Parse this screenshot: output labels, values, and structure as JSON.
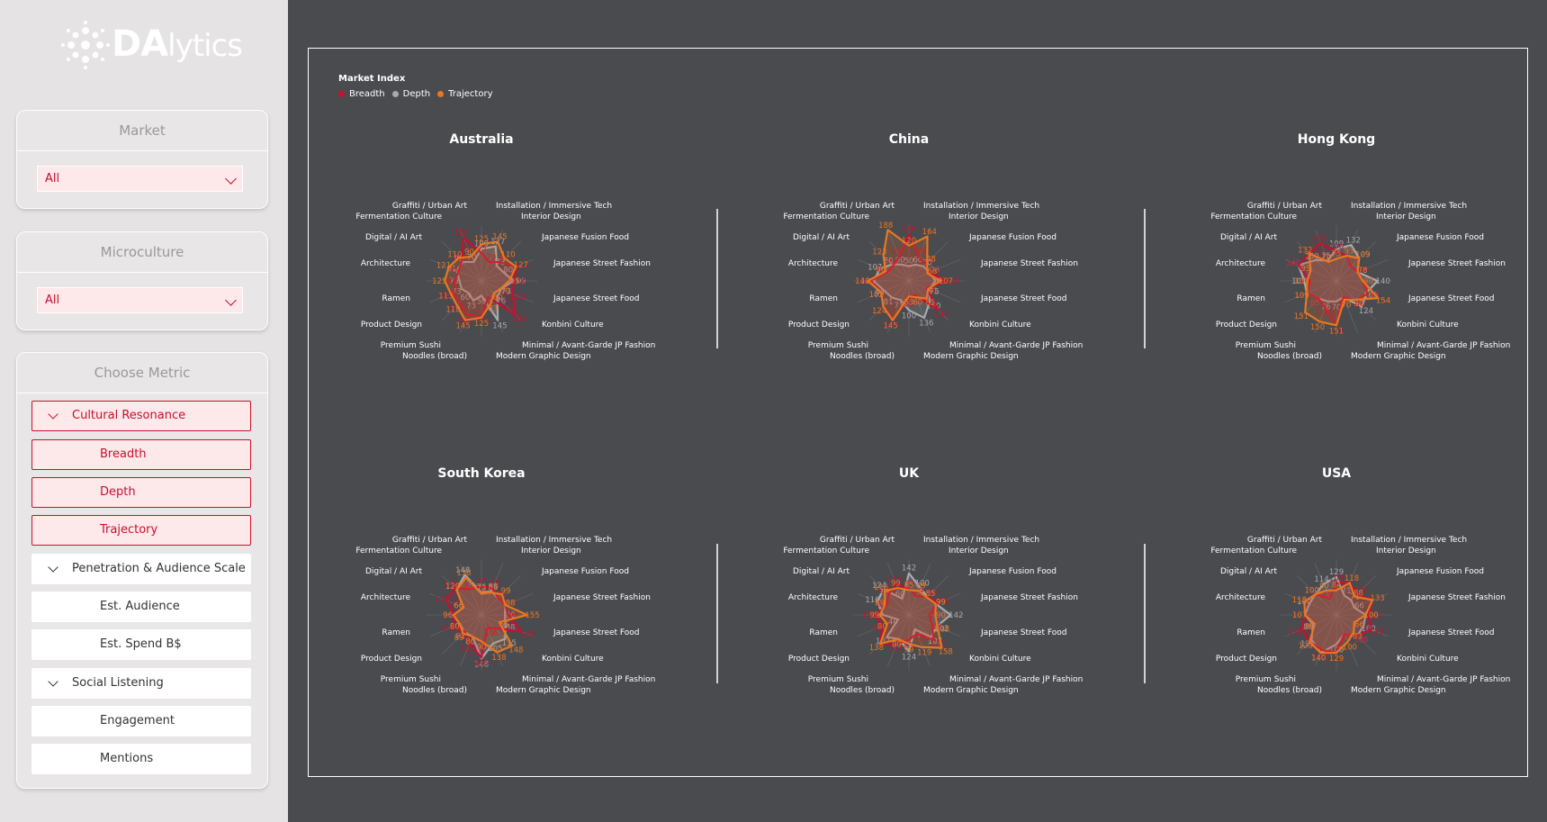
{
  "brand": {
    "name_bold": "DA",
    "name_light": "lytics"
  },
  "filters": {
    "market": {
      "title": "Market",
      "value": "All"
    },
    "microculture": {
      "title": "Microculture",
      "value": "All"
    }
  },
  "metric_panel": {
    "title": "Choose Metric",
    "items": [
      {
        "label": "Cultural Resonance",
        "kind": "group",
        "selected": true
      },
      {
        "label": "Breadth",
        "kind": "sub",
        "selected": true
      },
      {
        "label": "Depth",
        "kind": "sub",
        "selected": true
      },
      {
        "label": "Trajectory",
        "kind": "sub",
        "selected": true
      },
      {
        "label": "Penetration & Audience Scale",
        "kind": "group",
        "selected": false
      },
      {
        "label": "Est. Audience",
        "kind": "sub",
        "selected": false
      },
      {
        "label": "Est. Spend B$",
        "kind": "sub",
        "selected": false
      },
      {
        "label": "Social Listening",
        "kind": "group",
        "selected": false
      },
      {
        "label": "Engagement",
        "kind": "sub",
        "selected": false
      },
      {
        "label": "Mentions",
        "kind": "sub",
        "selected": false
      }
    ]
  },
  "colors": {
    "breadth": "#c8102e",
    "depth": "#a7a9ac",
    "trajectory": "#e87722",
    "panel_bg": "#4a4b4f"
  },
  "chart_data": {
    "type": "radar",
    "legend_title": "Market Index",
    "series_names": [
      "Breadth",
      "Depth",
      "Trajectory"
    ],
    "axes": [
      "Installation / Immersive Tech",
      "Interior Design",
      "Japanese Fusion Food",
      "Japanese Street Fashion",
      "Japanese Street Food",
      "Konbini Culture",
      "Minimal / Avant-Garde JP Fashion",
      "Modern Graphic Design",
      "Noodles (broad)",
      "Premium Sushi",
      "Product Design",
      "Ramen",
      "Architecture",
      "Digital / AI Art",
      "Fermentation Culture",
      "Graffiti / Urban Art"
    ],
    "rmax": 190,
    "charts": [
      {
        "title": "Australia",
        "breadth": [
          95,
          70,
          90,
          131,
          110,
          116,
          164,
          60,
          120,
          125,
          106,
          105,
          90,
          85,
          95,
          160
        ],
        "depth": [
          109,
          127,
          73,
          80,
          109,
          73,
          76,
          145,
          50,
          73,
          60,
          73,
          75,
          91,
          91,
          70
        ],
        "trajectory": [
          125,
          145,
          110,
          127,
          95,
          70,
          60,
          83,
          125,
          145,
          118,
          113,
          125,
          121,
          110,
          90
        ]
      },
      {
        "title": "China",
        "breadth": [
          160,
          90,
          80,
          75,
          130,
          65,
          141,
          50,
          60,
          141,
          124,
          102,
          132,
          80,
          75,
          90
        ],
        "depth": [
          50,
          60,
          70,
          76,
          90,
          75,
          100,
          136,
          100,
          71,
          81,
          90,
          120,
          107,
          80,
          60
        ],
        "trajectory": [
          120,
          164,
          88,
          68,
          107,
          71,
          85,
          60,
          53,
          145,
          124,
          102,
          140,
          86,
          123,
          188
        ]
      },
      {
        "title": "Hong Kong",
        "breadth": [
          100,
          93,
          70,
          80,
          90,
          115,
          94,
          60,
          150,
          100,
          85,
          109,
          90,
          140,
          132,
          140
        ],
        "depth": [
          109,
          132,
          109,
          78,
          140,
          109,
          124,
          60,
          70,
          76,
          85,
          109,
          109,
          140,
          100,
          75
        ],
        "trajectory": [
          75,
          93,
          109,
          78,
          90,
          154,
          90,
          70,
          151,
          150,
          151,
          109,
          100,
          95,
          132,
          70
        ]
      },
      {
        "title": "South Korea",
        "breadth": [
          97,
          99,
          80,
          88,
          90,
          148,
          63,
          50,
          145,
          105,
          80,
          103,
          96,
          130,
          130,
          95
        ],
        "depth": [
          76,
          88,
          80,
          88,
          80,
          88,
          115,
          105,
          148,
          80,
          82,
          80,
          96,
          66,
          120,
          148
        ],
        "trajectory": [
          72,
          83,
          99,
          88,
          155,
          66,
          148,
          138,
          90,
          80,
          89,
          80,
          96,
          66,
          120,
          138
        ]
      },
      {
        "title": "UK",
        "breadth": [
          89,
          69,
          88,
          105,
          70,
          85,
          120,
          70,
          85,
          107,
          138,
          99,
          116,
          82,
          99,
          114
        ],
        "depth": [
          142,
          100,
          88,
          99,
          142,
          102,
          107,
          53,
          124,
          89,
          107,
          40,
          89,
          116,
          124,
          60
        ],
        "trajectory": [
          85,
          89,
          85,
          99,
          90,
          105,
          158,
          119,
          99,
          90,
          138,
          80,
          99,
          89,
          116,
          99
        ]
      },
      {
        "title": "USA",
        "breadth": [
          108,
          118,
          100,
          133,
          110,
          129,
          100,
          70,
          129,
          129,
          129,
          130,
          107,
          118,
          100,
          60
        ],
        "depth": [
          129,
          71,
          71,
          66,
          100,
          100,
          100,
          70,
          100,
          140,
          120,
          86,
          107,
          100,
          100,
          114
        ],
        "trajectory": [
          84,
          118,
          88,
          133,
          100,
          66,
          83,
          100,
          129,
          140,
          129,
          80,
          107,
          118,
          100,
          90
        ]
      }
    ]
  }
}
